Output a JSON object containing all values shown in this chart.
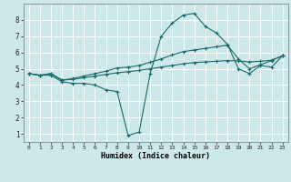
{
  "xlabel": "Humidex (Indice chaleur)",
  "bg_color": "#cce8e8",
  "grid_color": "#ffffff",
  "line_color": "#1a6b6b",
  "xlim": [
    -0.5,
    23.5
  ],
  "ylim": [
    0.5,
    9.0
  ],
  "xticks": [
    0,
    1,
    2,
    3,
    4,
    5,
    6,
    7,
    8,
    9,
    10,
    11,
    12,
    13,
    14,
    15,
    16,
    17,
    18,
    19,
    20,
    21,
    22,
    23
  ],
  "yticks": [
    1,
    2,
    3,
    4,
    5,
    6,
    7,
    8
  ],
  "series": [
    {
      "x": [
        0,
        1,
        2,
        3,
        4,
        5,
        6,
        7,
        8,
        9,
        10,
        11,
        12,
        13,
        14,
        15,
        16,
        17,
        18,
        19,
        20,
        21,
        22,
        23
      ],
      "y": [
        4.7,
        4.6,
        4.6,
        4.2,
        4.1,
        4.1,
        4.0,
        3.7,
        3.6,
        0.9,
        1.1,
        4.7,
        7.0,
        7.8,
        8.3,
        8.4,
        7.6,
        7.2,
        6.5,
        5.0,
        4.7,
        5.2,
        5.1,
        5.8
      ]
    },
    {
      "x": [
        0,
        1,
        2,
        3,
        4,
        5,
        6,
        7,
        8,
        9,
        10,
        11,
        12,
        13,
        14,
        15,
        16,
        17,
        18,
        19,
        20,
        21,
        22,
        23
      ],
      "y": [
        4.7,
        4.6,
        4.7,
        4.3,
        4.35,
        4.45,
        4.55,
        4.65,
        4.75,
        4.82,
        4.9,
        5.0,
        5.1,
        5.2,
        5.3,
        5.38,
        5.42,
        5.46,
        5.5,
        5.48,
        5.42,
        5.46,
        5.52,
        5.8
      ]
    },
    {
      "x": [
        0,
        1,
        2,
        3,
        4,
        5,
        6,
        7,
        8,
        9,
        10,
        11,
        12,
        13,
        14,
        15,
        16,
        17,
        18,
        19,
        20,
        21,
        22,
        23
      ],
      "y": [
        4.7,
        4.6,
        4.7,
        4.3,
        4.4,
        4.55,
        4.7,
        4.85,
        5.05,
        5.1,
        5.2,
        5.4,
        5.6,
        5.85,
        6.05,
        6.15,
        6.25,
        6.35,
        6.45,
        5.6,
        5.0,
        5.25,
        5.5,
        5.8
      ]
    }
  ]
}
